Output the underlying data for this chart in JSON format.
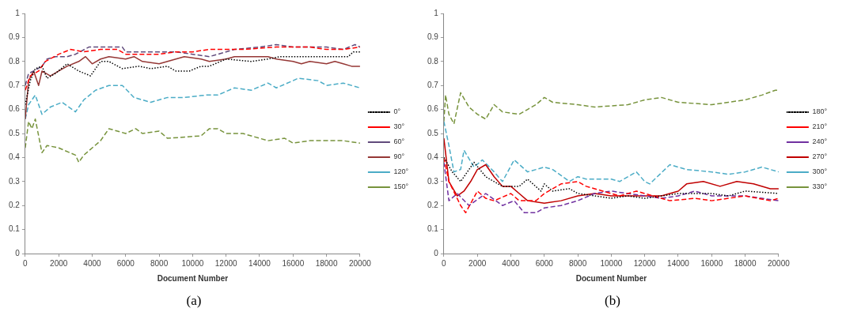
{
  "chart_data": [
    {
      "type": "line",
      "xlabel": "Document Number",
      "annotations": [
        "(a)"
      ],
      "xlim": [
        0,
        20000
      ],
      "xticks": [
        0,
        2000,
        4000,
        6000,
        8000,
        10000,
        12000,
        14000,
        16000,
        18000,
        20000
      ],
      "ylim": [
        0,
        1
      ],
      "yticks": [
        0,
        0.1,
        0.2,
        0.3,
        0.4,
        0.5,
        0.6,
        0.7,
        0.8,
        0.9,
        1
      ],
      "grid": false,
      "legend": "right",
      "marker": "none",
      "series": [
        {
          "name": "0°",
          "color": "#000000",
          "line_style": "dotted",
          "x": [
            0,
            300,
            600,
            1000,
            1300,
            1800,
            2500,
            3200,
            3900,
            4500,
            5000,
            5800,
            6800,
            7500,
            8500,
            9000,
            9800,
            10500,
            11000,
            12000,
            13500,
            14500,
            15200,
            17000,
            19300,
            19600,
            20000
          ],
          "values": [
            0.62,
            0.72,
            0.77,
            0.78,
            0.73,
            0.75,
            0.79,
            0.76,
            0.74,
            0.8,
            0.8,
            0.77,
            0.78,
            0.77,
            0.78,
            0.76,
            0.76,
            0.78,
            0.78,
            0.81,
            0.8,
            0.81,
            0.82,
            0.82,
            0.82,
            0.84,
            0.84
          ]
        },
        {
          "name": "30°",
          "color": "#ff0000",
          "line_style": "dashed",
          "x": [
            0,
            300,
            800,
            1200,
            2000,
            2700,
            3500,
            4500,
            5500,
            6000,
            7000,
            8000,
            9000,
            10000,
            11000,
            13000,
            15000,
            17000,
            18000,
            19000,
            20000
          ],
          "values": [
            0.68,
            0.74,
            0.76,
            0.8,
            0.83,
            0.85,
            0.84,
            0.85,
            0.85,
            0.83,
            0.83,
            0.83,
            0.84,
            0.84,
            0.85,
            0.85,
            0.86,
            0.86,
            0.85,
            0.85,
            0.86
          ]
        },
        {
          "name": "60°",
          "color": "#604a7b",
          "line_style": "dashed",
          "x": [
            0,
            200,
            500,
            1000,
            1300,
            1800,
            2500,
            3000,
            3800,
            4500,
            5800,
            6000,
            7000,
            9000,
            10000,
            11000,
            12500,
            14000,
            15000,
            16000,
            18000,
            19000,
            19700,
            20000
          ],
          "values": [
            0.7,
            0.75,
            0.76,
            0.78,
            0.81,
            0.82,
            0.82,
            0.83,
            0.86,
            0.86,
            0.86,
            0.84,
            0.84,
            0.84,
            0.83,
            0.82,
            0.85,
            0.86,
            0.87,
            0.86,
            0.86,
            0.85,
            0.87,
            0.86
          ]
        },
        {
          "name": "90°",
          "color": "#953735",
          "line_style": "solid",
          "x": [
            0,
            200,
            500,
            800,
            1000,
            1500,
            2000,
            2500,
            3200,
            3600,
            4000,
            4500,
            5000,
            6000,
            6500,
            7000,
            8000,
            9000,
            9500,
            10500,
            11000,
            12000,
            12500,
            14500,
            15000,
            16000,
            16500,
            17000,
            18000,
            18500,
            19000,
            19500,
            20000
          ],
          "values": [
            0.56,
            0.72,
            0.76,
            0.7,
            0.76,
            0.74,
            0.76,
            0.78,
            0.8,
            0.82,
            0.79,
            0.81,
            0.82,
            0.81,
            0.82,
            0.8,
            0.79,
            0.81,
            0.82,
            0.81,
            0.8,
            0.81,
            0.82,
            0.82,
            0.81,
            0.8,
            0.79,
            0.8,
            0.79,
            0.8,
            0.79,
            0.78,
            0.78
          ]
        },
        {
          "name": "120°",
          "color": "#4bacc6",
          "line_style": "dashed",
          "x": [
            0,
            200,
            600,
            1000,
            1500,
            2200,
            3000,
            3500,
            4200,
            5000,
            5800,
            6500,
            7500,
            8500,
            9500,
            10800,
            11500,
            12500,
            13500,
            14500,
            15000,
            16000,
            16300,
            17500,
            18000,
            19000,
            20000
          ],
          "values": [
            0.56,
            0.62,
            0.66,
            0.58,
            0.61,
            0.63,
            0.59,
            0.64,
            0.68,
            0.7,
            0.7,
            0.65,
            0.63,
            0.65,
            0.65,
            0.66,
            0.66,
            0.69,
            0.68,
            0.71,
            0.69,
            0.72,
            0.73,
            0.72,
            0.7,
            0.71,
            0.69
          ]
        },
        {
          "name": "150°",
          "color": "#77933c",
          "line_style": "dashed",
          "x": [
            0,
            200,
            400,
            600,
            1000,
            1300,
            2000,
            3000,
            3200,
            3500,
            4500,
            5000,
            6000,
            6600,
            7000,
            8000,
            8500,
            10500,
            11000,
            11500,
            12000,
            13000,
            14500,
            15500,
            16000,
            17000,
            19000,
            20000
          ],
          "values": [
            0.44,
            0.55,
            0.52,
            0.56,
            0.42,
            0.45,
            0.44,
            0.41,
            0.38,
            0.41,
            0.47,
            0.52,
            0.5,
            0.52,
            0.5,
            0.51,
            0.48,
            0.49,
            0.52,
            0.52,
            0.5,
            0.5,
            0.47,
            0.48,
            0.46,
            0.47,
            0.47,
            0.46
          ]
        }
      ]
    },
    {
      "type": "line",
      "xlabel": "Document Number",
      "annotations": [
        "(b)"
      ],
      "xlim": [
        0,
        20000
      ],
      "xticks": [
        0,
        2000,
        4000,
        6000,
        8000,
        10000,
        12000,
        14000,
        16000,
        18000,
        20000
      ],
      "ylim": [
        0,
        1
      ],
      "yticks": [
        0,
        0.1,
        0.2,
        0.3,
        0.4,
        0.5,
        0.6,
        0.7,
        0.8,
        0.9,
        1
      ],
      "grid": false,
      "legend": "right",
      "marker": "none",
      "series": [
        {
          "name": "180°",
          "color": "#000000",
          "line_style": "dotted",
          "x": [
            0,
            500,
            1000,
            1800,
            2500,
            3000,
            3500,
            4500,
            5000,
            5800,
            6000,
            6500,
            7500,
            8000,
            9000,
            10000,
            11000,
            12000,
            13000,
            14000,
            16000,
            17000,
            18000,
            20000
          ],
          "values": [
            0.4,
            0.34,
            0.3,
            0.38,
            0.32,
            0.3,
            0.28,
            0.28,
            0.31,
            0.26,
            0.29,
            0.26,
            0.27,
            0.25,
            0.24,
            0.23,
            0.24,
            0.23,
            0.24,
            0.25,
            0.25,
            0.24,
            0.26,
            0.25
          ]
        },
        {
          "name": "210°",
          "color": "#ff0000",
          "line_style": "dashed",
          "x": [
            0,
            300,
            1000,
            1300,
            2000,
            2500,
            3000,
            4000,
            4500,
            5500,
            6000,
            7000,
            8000,
            8500,
            9500,
            10500,
            11500,
            12000,
            13500,
            15000,
            16000,
            17000,
            18000,
            19500,
            20000
          ],
          "values": [
            0.4,
            0.3,
            0.2,
            0.17,
            0.26,
            0.23,
            0.22,
            0.25,
            0.22,
            0.22,
            0.25,
            0.29,
            0.3,
            0.28,
            0.26,
            0.24,
            0.26,
            0.25,
            0.22,
            0.23,
            0.22,
            0.23,
            0.24,
            0.22,
            0.23
          ]
        },
        {
          "name": "240°",
          "color": "#7030a0",
          "line_style": "dashed",
          "x": [
            0,
            300,
            800,
            1500,
            2500,
            3500,
            4200,
            4800,
            5500,
            6000,
            7000,
            8000,
            9000,
            10000,
            11000,
            12000,
            13000,
            14000,
            15000,
            16000,
            18000,
            19000,
            20000
          ],
          "values": [
            0.38,
            0.22,
            0.25,
            0.2,
            0.25,
            0.2,
            0.22,
            0.17,
            0.17,
            0.19,
            0.2,
            0.22,
            0.25,
            0.26,
            0.25,
            0.24,
            0.23,
            0.24,
            0.26,
            0.24,
            0.24,
            0.23,
            0.22
          ]
        },
        {
          "name": "270°",
          "color": "#c00000",
          "line_style": "solid",
          "x": [
            0,
            300,
            800,
            1200,
            1600,
            2000,
            2500,
            3000,
            3500,
            4000,
            4500,
            5000,
            6000,
            7000,
            8000,
            9000,
            10000,
            11000,
            13000,
            14000,
            14500,
            15500,
            16500,
            17500,
            18500,
            19500,
            20000
          ],
          "values": [
            0.48,
            0.3,
            0.24,
            0.26,
            0.3,
            0.35,
            0.37,
            0.32,
            0.28,
            0.28,
            0.25,
            0.22,
            0.21,
            0.22,
            0.24,
            0.25,
            0.24,
            0.24,
            0.24,
            0.26,
            0.29,
            0.3,
            0.28,
            0.3,
            0.29,
            0.27,
            0.27
          ]
        },
        {
          "name": "300°",
          "color": "#4bacc6",
          "line_style": "dashed",
          "x": [
            0,
            300,
            600,
            1000,
            1200,
            1800,
            2300,
            3000,
            3500,
            4200,
            5000,
            5500,
            6000,
            6500,
            7500,
            8000,
            8500,
            10000,
            10500,
            11500,
            12000,
            12300,
            13500,
            14500,
            16000,
            17000,
            18000,
            19000,
            20000
          ],
          "values": [
            0.55,
            0.45,
            0.34,
            0.35,
            0.43,
            0.36,
            0.39,
            0.34,
            0.3,
            0.39,
            0.34,
            0.35,
            0.36,
            0.35,
            0.3,
            0.32,
            0.31,
            0.31,
            0.3,
            0.34,
            0.3,
            0.29,
            0.37,
            0.35,
            0.34,
            0.33,
            0.34,
            0.36,
            0.34
          ]
        },
        {
          "name": "330°",
          "color": "#77933c",
          "line_style": "dashed",
          "x": [
            0,
            100,
            300,
            600,
            1000,
            1500,
            2000,
            2500,
            3000,
            3500,
            4500,
            5000,
            5500,
            6000,
            6500,
            8000,
            9000,
            11000,
            12000,
            13000,
            14000,
            16000,
            17000,
            18000,
            19000,
            19800,
            20000
          ],
          "values": [
            0.55,
            0.66,
            0.58,
            0.54,
            0.67,
            0.61,
            0.58,
            0.56,
            0.62,
            0.59,
            0.58,
            0.6,
            0.62,
            0.65,
            0.63,
            0.62,
            0.61,
            0.62,
            0.64,
            0.65,
            0.63,
            0.62,
            0.63,
            0.64,
            0.66,
            0.68,
            0.68
          ]
        }
      ]
    }
  ]
}
